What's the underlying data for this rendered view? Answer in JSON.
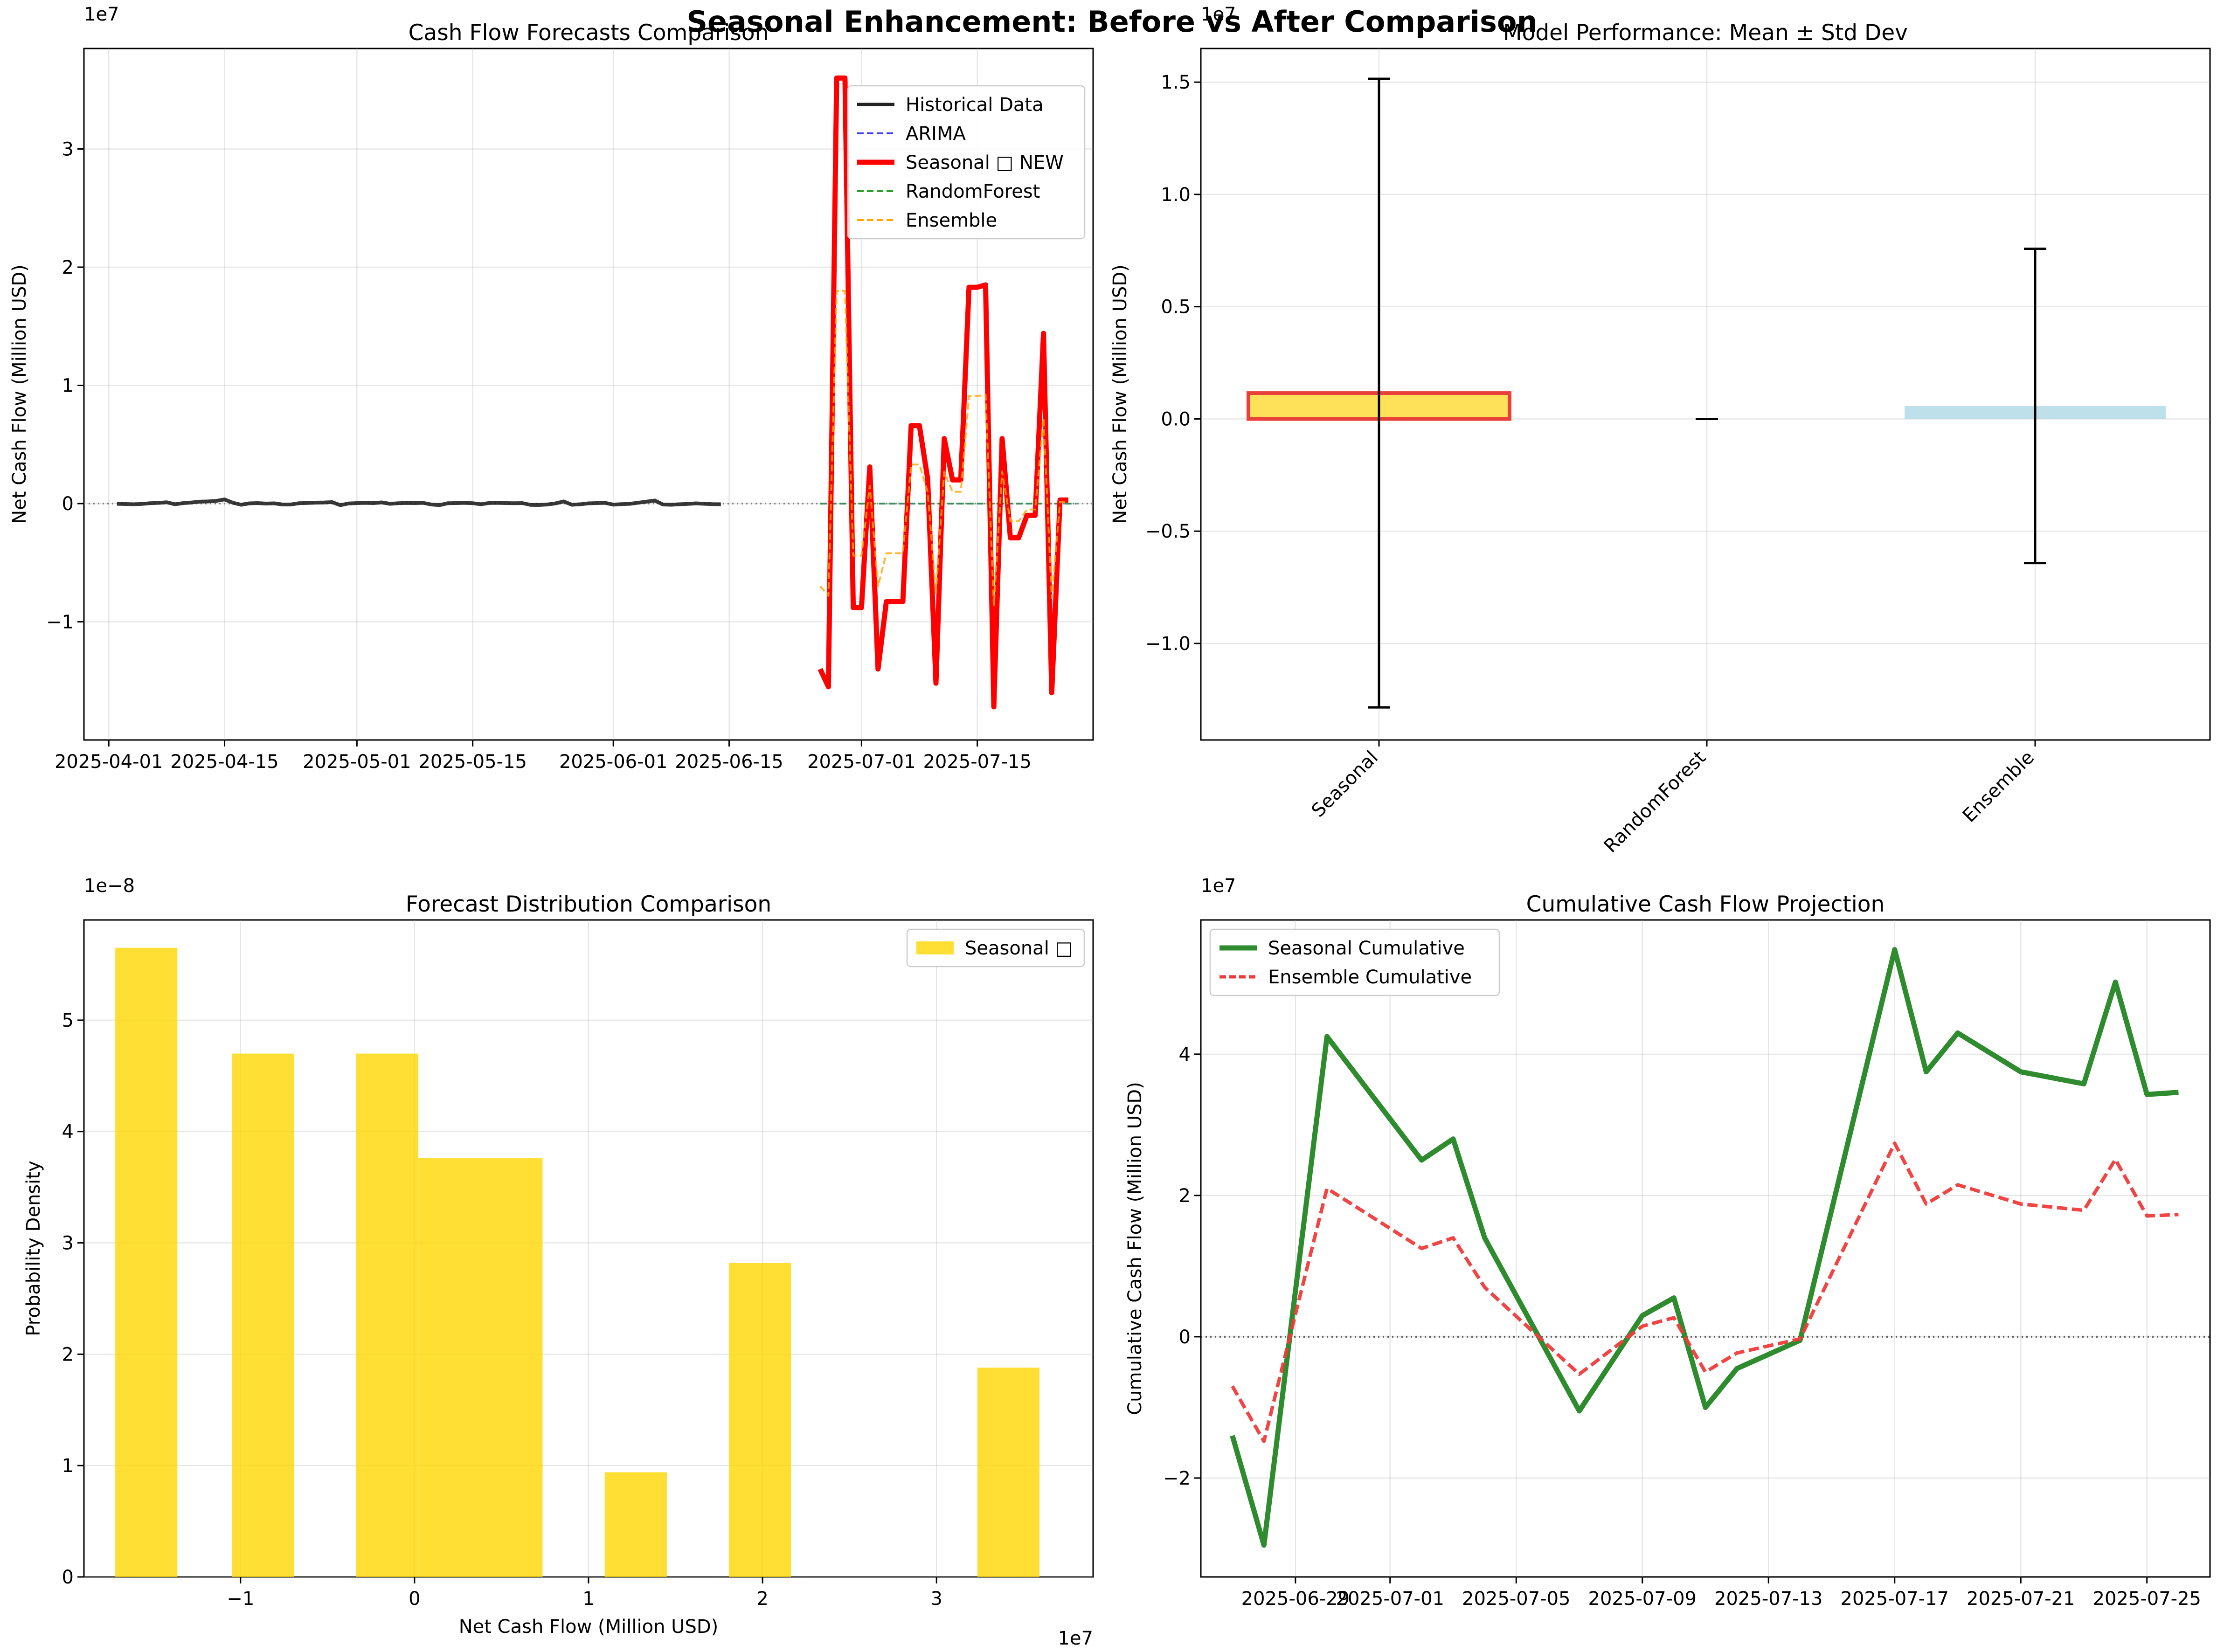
{
  "figure": {
    "suptitle": "Seasonal Enhancement: Before vs After Comparison"
  },
  "chart_data": [
    {
      "id": "forecasts",
      "type": "line",
      "title": "Cash Flow Forecasts Comparison",
      "xlabel": "",
      "ylabel": "Net Cash Flow (Million USD)",
      "offset_text": "1e7",
      "xlim": [
        "2025-03-29",
        "2025-07-29"
      ],
      "ylim": [
        -20000000,
        38500000
      ],
      "x_ticks": [
        "2025-04-01",
        "2025-04-15",
        "2025-05-01",
        "2025-05-15",
        "2025-06-01",
        "2025-06-15",
        "2025-07-01",
        "2025-07-15"
      ],
      "y_ticks": [
        -10000000,
        0,
        10000000,
        20000000,
        30000000
      ],
      "y_tick_labels": [
        "−1",
        "0",
        "1",
        "2",
        "3"
      ],
      "grid": true,
      "legend_position": "top-right",
      "zero_line": true,
      "legend": [
        {
          "label": "Historical Data",
          "color": "#222222",
          "style": "solid",
          "width": 7
        },
        {
          "label": "ARIMA",
          "color": "#3b3bf5",
          "style": "dashed",
          "width": 4
        },
        {
          "label": "Seasonal  □ NEW",
          "color": "#ff0000",
          "style": "solid",
          "width": 11
        },
        {
          "label": "RandomForest",
          "color": "#2ca02c",
          "style": "dashed",
          "width": 4
        },
        {
          "label": "Ensemble",
          "color": "#ffa500",
          "style": "dashed",
          "width": 4
        }
      ],
      "series": [
        {
          "name": "Historical Data",
          "color": "#222222",
          "style": "solid",
          "start_date": "2025-04-02",
          "values": [
            -20000,
            -40000,
            -60000,
            -30000,
            30000,
            60000,
            110000,
            -60000,
            40000,
            90000,
            160000,
            180000,
            230000,
            350000,
            70000,
            -100000,
            20000,
            40000,
            0,
            20000,
            -80000,
            -80000,
            30000,
            50000,
            80000,
            90000,
            120000,
            -140000,
            10000,
            40000,
            60000,
            40000,
            100000,
            -20000,
            30000,
            50000,
            40000,
            60000,
            -80000,
            -130000,
            30000,
            40000,
            60000,
            30000,
            -60000,
            50000,
            60000,
            40000,
            30000,
            40000,
            -110000,
            -120000,
            -80000,
            10000,
            180000,
            -100000,
            -60000,
            20000,
            40000,
            60000,
            -90000,
            -50000,
            -20000,
            70000,
            160000,
            260000,
            -80000,
            -100000,
            -60000,
            -30000,
            20000,
            -20000,
            -50000,
            -60000
          ]
        },
        {
          "name": "ARIMA",
          "color": "#3b3bf5",
          "style": "dashed",
          "dates": [
            "2025-06-26",
            "2025-07-27"
          ],
          "values": [
            0,
            0
          ]
        },
        {
          "name": "RandomForest",
          "color": "#2ca02c",
          "style": "dashed",
          "dates": [
            "2025-06-26",
            "2025-07-27"
          ],
          "values": [
            0,
            0
          ]
        },
        {
          "name": "Seasonal  □ NEW",
          "color": "#ff0000",
          "style": "solid",
          "dates": [
            "2025-06-26",
            "2025-06-27",
            "2025-06-28",
            "2025-06-29",
            "2025-06-30",
            "2025-07-01",
            "2025-07-02",
            "2025-07-03",
            "2025-07-04",
            "2025-07-05",
            "2025-07-06",
            "2025-07-07",
            "2025-07-08",
            "2025-07-09",
            "2025-07-10",
            "2025-07-11",
            "2025-07-12",
            "2025-07-13",
            "2025-07-14",
            "2025-07-15",
            "2025-07-16",
            "2025-07-17",
            "2025-07-18",
            "2025-07-19",
            "2025-07-20",
            "2025-07-21",
            "2025-07-22",
            "2025-07-23",
            "2025-07-24",
            "2025-07-25",
            "2025-07-26"
          ],
          "values": [
            -14000000,
            -15500000,
            36000000,
            36000000,
            -8800000,
            -8800000,
            3100000,
            -14000000,
            -8300000,
            -8300000,
            -8300000,
            6600000,
            6600000,
            2100000,
            -15200000,
            5500000,
            2000000,
            2000000,
            18300000,
            18300000,
            18500000,
            -17200000,
            5500000,
            -2900000,
            -2900000,
            -1000000,
            -1000000,
            14400000,
            -16000000,
            300000,
            300000
          ]
        },
        {
          "name": "Ensemble",
          "color": "#ffa500",
          "style": "dashed",
          "dates": [
            "2025-06-26",
            "2025-06-27",
            "2025-06-28",
            "2025-06-29",
            "2025-06-30",
            "2025-07-01",
            "2025-07-02",
            "2025-07-03",
            "2025-07-04",
            "2025-07-05",
            "2025-07-06",
            "2025-07-07",
            "2025-07-08",
            "2025-07-09",
            "2025-07-10",
            "2025-07-11",
            "2025-07-12",
            "2025-07-13",
            "2025-07-14",
            "2025-07-15",
            "2025-07-16",
            "2025-07-17",
            "2025-07-18",
            "2025-07-19",
            "2025-07-20",
            "2025-07-21",
            "2025-07-22",
            "2025-07-23",
            "2025-07-24",
            "2025-07-25",
            "2025-07-26"
          ],
          "values": [
            -7000000,
            -7800000,
            18000000,
            18000000,
            -4400000,
            -4400000,
            1500000,
            -7000000,
            -4200000,
            -4200000,
            -4200000,
            3300000,
            3300000,
            1000000,
            -7600000,
            2700000,
            1000000,
            1000000,
            9100000,
            9100000,
            9200000,
            -8600000,
            2700000,
            -1500000,
            -1500000,
            -500000,
            -500000,
            7200000,
            -8000000,
            150000,
            150000
          ]
        }
      ]
    },
    {
      "id": "performance",
      "type": "bar",
      "title": "Model Performance: Mean ± Std Dev",
      "xlabel": "",
      "ylabel": "Net Cash Flow (Million USD)",
      "offset_text": "1e7",
      "categories": [
        "Seasonal",
        "RandomForest",
        "Ensemble"
      ],
      "values": [
        1150000,
        0,
        580000
      ],
      "std": [
        14000000,
        0,
        7000000
      ],
      "colors": [
        "#ffd92f",
        "#ffffff",
        "#add8e6"
      ],
      "edge_colors": [
        "#e8403a",
        "#ffffff",
        "#add8e6"
      ],
      "ylim": [
        -14300000,
        16500000
      ],
      "y_ticks": [
        -10000000,
        -5000000,
        0,
        5000000,
        10000000,
        15000000
      ],
      "y_tick_labels": [
        "−1.0",
        "−0.5",
        "0.0",
        "0.5",
        "1.0",
        "1.5"
      ],
      "grid": true
    },
    {
      "id": "distribution",
      "type": "bar",
      "title": "Forecast Distribution Comparison",
      "xlabel": "Net Cash Flow (Million USD)",
      "ylabel": "Probability Density",
      "x_offset_text": "1e7",
      "y_offset_text": "1e−8",
      "xlim": [
        -19000000,
        39000000
      ],
      "ylim": [
        0,
        5.9e-08
      ],
      "x_ticks": [
        -10000000,
        0,
        10000000,
        20000000,
        30000000
      ],
      "x_tick_labels": [
        "−1",
        "0",
        "1",
        "2",
        "3"
      ],
      "y_ticks": [
        0,
        1e-08,
        2e-08,
        3e-08,
        4e-08,
        5e-08
      ],
      "y_tick_labels": [
        "0",
        "1",
        "2",
        "3",
        "4",
        "5"
      ],
      "grid": true,
      "legend_position": "top-right",
      "legend": [
        {
          "label": "Seasonal □",
          "color": "#ffd700"
        }
      ],
      "series": [
        {
          "name": "Seasonal □",
          "color": "#ffd700",
          "bins": [
            [
              -17200000,
              -13630000,
              5.65e-08
            ],
            [
              -10490000,
              -6920000,
              4.7e-08
            ],
            [
              -3350000,
              220000,
              4.7e-08
            ],
            [
              220000,
              7360000,
              3.76e-08
            ],
            [
              10930000,
              14500000,
              9.4e-09
            ],
            [
              18070000,
              21640000,
              2.82e-08
            ],
            [
              32350000,
              35920000,
              1.88e-08
            ]
          ]
        }
      ]
    },
    {
      "id": "cumulative",
      "type": "line",
      "title": "Cumulative Cash Flow Projection",
      "xlabel": "",
      "ylabel": "Cumulative Cash Flow (Million USD)",
      "offset_text": "1e7",
      "xlim": [
        "2025-06-25",
        "2025-07-27"
      ],
      "ylim": [
        -34000000,
        59000000
      ],
      "x_tick_labels": [
        "2025-06-29",
        "2025-07-01",
        "2025-07-05",
        "2025-07-09",
        "2025-07-13",
        "2025-07-17",
        "2025-07-21",
        "2025-07-25"
      ],
      "y_ticks": [
        -20000000,
        0,
        20000000,
        40000000
      ],
      "y_tick_labels": [
        "−2",
        "0",
        "2",
        "4"
      ],
      "grid": true,
      "legend_position": "top-left",
      "zero_line": true,
      "legend": [
        {
          "label": "Seasonal Cumulative",
          "color": "#2e8b2e",
          "style": "solid"
        },
        {
          "label": "Ensemble Cumulative",
          "color": "#f03a3a",
          "style": "dashed"
        }
      ],
      "series": [
        {
          "name": "Seasonal Cumulative",
          "color": "#2e8b2e",
          "style": "solid",
          "dates": [
            "2025-06-26",
            "2025-06-27",
            "2025-06-28",
            "2025-06-29",
            "2025-07-02",
            "2025-07-03",
            "2025-07-04",
            "2025-07-07",
            "2025-07-09",
            "2025-07-10",
            "2025-07-11",
            "2025-07-12",
            "2025-07-14",
            "2025-07-17",
            "2025-07-18",
            "2025-07-19",
            "2025-07-21",
            "2025-07-23",
            "2025-07-24",
            "2025-07-25",
            "2025-07-26"
          ],
          "values": [
            -14000000,
            -29500000,
            6500000,
            42500000,
            25000000,
            28000000,
            14000000,
            -10500000,
            3000000,
            5500000,
            -10000000,
            -4500000,
            -500000,
            54800000,
            37500000,
            43000000,
            37500000,
            35800000,
            50200000,
            34300000,
            34600000
          ]
        },
        {
          "name": "Ensemble Cumulative",
          "color": "#f03a3a",
          "style": "dashed",
          "dates": [
            "2025-06-26",
            "2025-06-27",
            "2025-06-28",
            "2025-06-29",
            "2025-07-02",
            "2025-07-03",
            "2025-07-04",
            "2025-07-07",
            "2025-07-09",
            "2025-07-10",
            "2025-07-11",
            "2025-07-12",
            "2025-07-14",
            "2025-07-17",
            "2025-07-18",
            "2025-07-19",
            "2025-07-21",
            "2025-07-23",
            "2025-07-24",
            "2025-07-25",
            "2025-07-26"
          ],
          "values": [
            -7000000,
            -14800000,
            3200000,
            21000000,
            12500000,
            14000000,
            7000000,
            -5300000,
            1500000,
            2700000,
            -5000000,
            -2300000,
            -300000,
            27400000,
            18800000,
            21500000,
            18800000,
            17900000,
            25100000,
            17100000,
            17300000
          ]
        }
      ]
    }
  ]
}
